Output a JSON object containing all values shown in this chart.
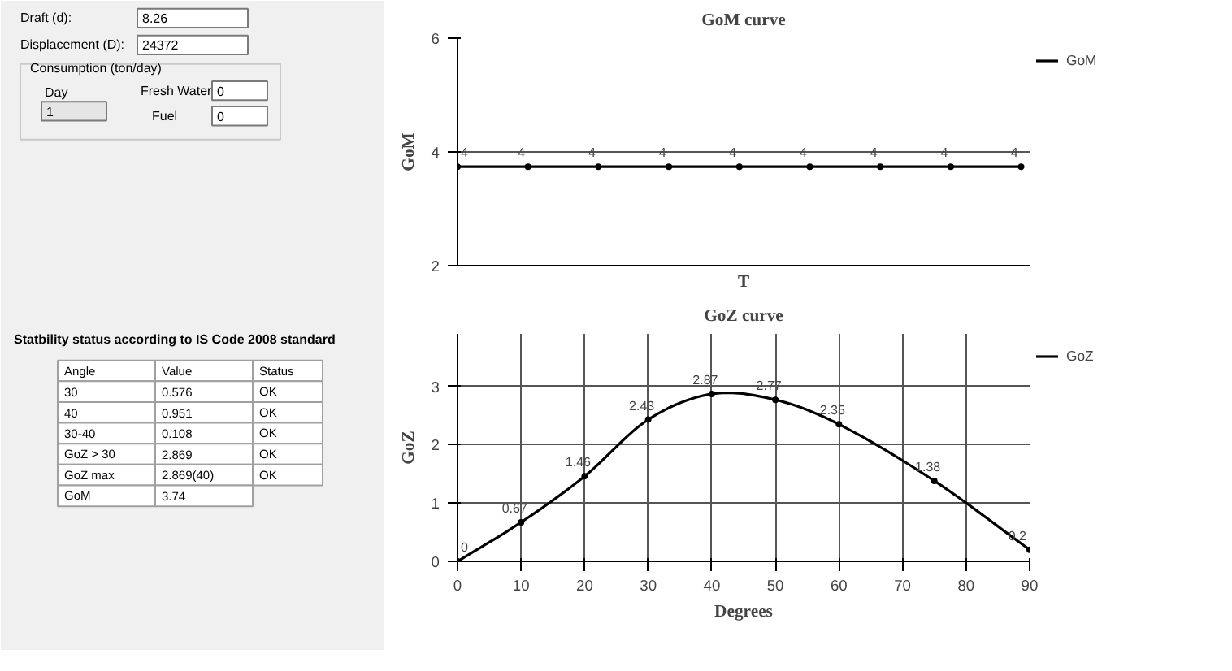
{
  "chart_data": [
    {
      "type": "other",
      "title": "Statbility status according to IS Code 2008 standard",
      "annotations": [
        "Draft (d):",
        "8.26",
        "Displacement (D):",
        "24372",
        "Consumption (ton/day)",
        "Day",
        "1",
        "Fresh Water",
        "0",
        "Fuel",
        "0",
        "Angle",
        "Value",
        "Status",
        "30",
        "0.576",
        "OK",
        "40",
        "0.951",
        "OK",
        "30-40",
        "0.108",
        "OK",
        "GoZ > 30",
        "2.869",
        "OK",
        "GoZ max",
        "2.869(40)",
        "OK",
        "GoM",
        "3.74"
      ]
    },
    {
      "type": "line",
      "title": "GoM curve",
      "xlabel": "T",
      "ylabel": "GoM",
      "categories": [
        null,
        null,
        null,
        null,
        null,
        null,
        null,
        null,
        null
      ],
      "series": [
        {
          "name": "GoM",
          "color": "#000000",
          "values": [
            3.74,
            3.74,
            3.74,
            3.74,
            3.74,
            3.74,
            3.74,
            3.74,
            3.74
          ],
          "value_labels": [
            "4",
            "4",
            "4",
            "4",
            "4",
            "4",
            "4",
            "4",
            "4"
          ]
        }
      ],
      "ylim": [
        2,
        6
      ],
      "yticks": [
        2,
        4,
        6
      ],
      "grid": "y",
      "legend": "top right",
      "marker": "circle",
      "tick_labels": "y"
    },
    {
      "type": "line",
      "title": "GoZ curve",
      "xlabel": "Degrees",
      "ylabel": "GoZ",
      "x": [
        0,
        10,
        20,
        30,
        40,
        50,
        60,
        75,
        90
      ],
      "series": [
        {
          "name": "GoZ",
          "color": "#000000",
          "values": [
            0,
            0.67,
            1.46,
            2.43,
            2.87,
            2.77,
            2.35,
            1.38,
            0.2
          ]
        }
      ],
      "data_labels": true,
      "xlim": [
        0,
        90
      ],
      "ylim": [
        0,
        3.9
      ],
      "xticks": [
        0,
        10,
        20,
        30,
        40,
        50,
        60,
        70,
        80,
        90
      ],
      "yticks": [
        0,
        1,
        2,
        3
      ],
      "grid": true,
      "legend": "top right",
      "marker": "circle"
    }
  ]
}
